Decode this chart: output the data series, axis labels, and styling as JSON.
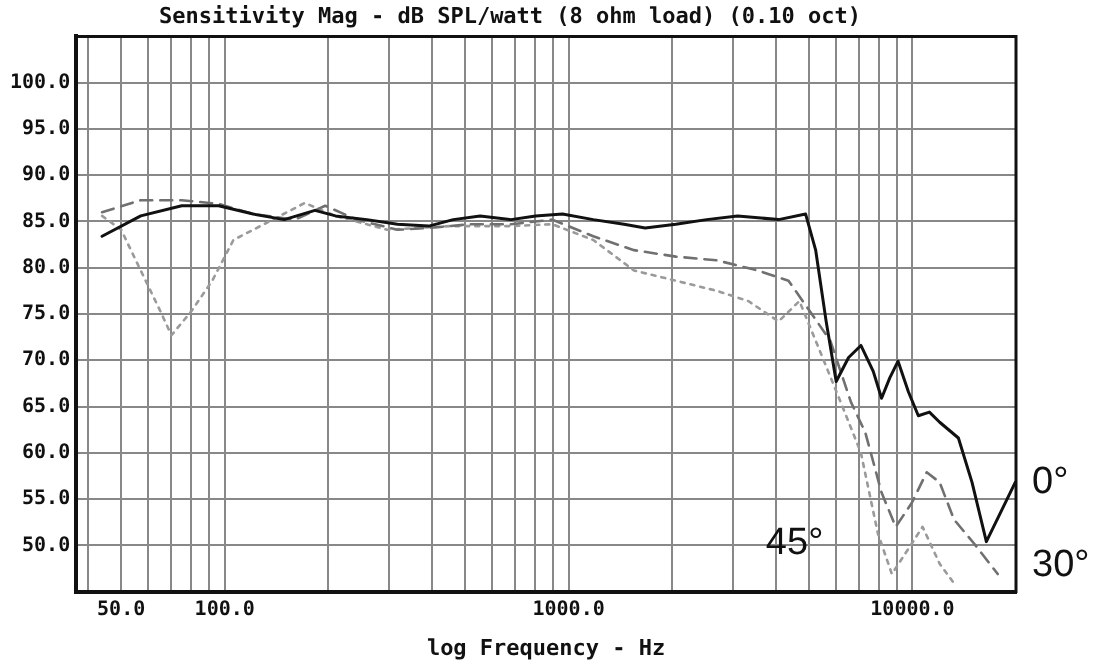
{
  "chart_data": {
    "type": "line",
    "title": "Sensitivity Mag - dB SPL/watt (8 ohm load) (0.10 oct)",
    "xlabel": "log Frequency - Hz",
    "log": "x",
    "grid": true,
    "legend": false,
    "marker": "none",
    "xlim": [
      37,
      20000
    ],
    "ylim": [
      45,
      105
    ],
    "xticks": [
      {
        "value": 40,
        "label": null
      },
      {
        "value": 50,
        "label": "50.0"
      },
      {
        "value": 60,
        "label": null
      },
      {
        "value": 70,
        "label": null
      },
      {
        "value": 80,
        "label": null
      },
      {
        "value": 90,
        "label": null
      },
      {
        "value": 100,
        "label": "100.0"
      },
      {
        "value": 200,
        "label": null
      },
      {
        "value": 300,
        "label": null
      },
      {
        "value": 400,
        "label": null
      },
      {
        "value": 500,
        "label": null
      },
      {
        "value": 600,
        "label": null
      },
      {
        "value": 700,
        "label": null
      },
      {
        "value": 800,
        "label": null
      },
      {
        "value": 900,
        "label": null
      },
      {
        "value": 1000,
        "label": "1000.0"
      },
      {
        "value": 2000,
        "label": null
      },
      {
        "value": 3000,
        "label": null
      },
      {
        "value": 4000,
        "label": null
      },
      {
        "value": 5000,
        "label": null
      },
      {
        "value": 6000,
        "label": null
      },
      {
        "value": 7000,
        "label": null
      },
      {
        "value": 8000,
        "label": null
      },
      {
        "value": 9000,
        "label": null
      },
      {
        "value": 10000,
        "label": "10000.0"
      },
      {
        "value": 20000,
        "label": null
      }
    ],
    "yticks": [
      {
        "value": 50,
        "label": "50.0"
      },
      {
        "value": 55,
        "label": "55.0"
      },
      {
        "value": 60,
        "label": "60.0"
      },
      {
        "value": 65,
        "label": "65.0"
      },
      {
        "value": 70,
        "label": "70.0"
      },
      {
        "value": 75,
        "label": "75.0"
      },
      {
        "value": 80,
        "label": "80.0"
      },
      {
        "value": 85,
        "label": "85.0"
      },
      {
        "value": 90,
        "label": "90.0"
      },
      {
        "value": 95,
        "label": "95.0"
      },
      {
        "value": 100,
        "label": "100.0"
      }
    ],
    "series": [
      {
        "name": "0°",
        "color": "#111111",
        "line_style": "solid",
        "x": [
          44,
          57,
          75,
          96,
          121,
          149,
          183,
          210,
          259,
          318,
          392,
          462,
          553,
          680,
          802,
          960,
          1180,
          1450,
          1670,
          2050,
          2520,
          3100,
          4080,
          4890,
          5230,
          5610,
          6000,
          6520,
          7080,
          7690,
          8130,
          8590,
          9080,
          9730,
          10400,
          11200,
          12000,
          13600,
          14900,
          16400,
          19900
        ],
        "values": [
          83.4,
          85.6,
          86.7,
          86.7,
          85.8,
          85.2,
          86.2,
          85.6,
          85.2,
          84.7,
          84.5,
          85.2,
          85.6,
          85.2,
          85.6,
          85.8,
          85.2,
          84.7,
          84.3,
          84.7,
          85.2,
          85.6,
          85.2,
          85.8,
          81.9,
          74.2,
          67.7,
          70.3,
          71.6,
          68.8,
          65.9,
          68.1,
          69.9,
          66.6,
          64.0,
          64.4,
          63.3,
          61.6,
          56.8,
          50.4,
          56.8
        ]
      },
      {
        "name": "30°",
        "color": "#707070",
        "line_style": "dashed",
        "x": [
          44,
          57,
          75,
          96,
          121,
          160,
          196,
          242,
          318,
          392,
          517,
          680,
          896,
          1180,
          1550,
          2050,
          2700,
          3550,
          4360,
          5030,
          5770,
          6620,
          7290,
          8130,
          8940,
          9960,
          11000,
          12000,
          13200,
          15100,
          17700
        ],
        "values": [
          86.0,
          87.3,
          87.3,
          86.9,
          85.8,
          85.2,
          86.7,
          85.2,
          84.1,
          84.3,
          84.7,
          84.7,
          85.2,
          83.4,
          81.9,
          81.2,
          80.8,
          79.7,
          78.6,
          75.3,
          72.1,
          65.5,
          62.2,
          55.7,
          52.0,
          54.6,
          57.9,
          56.8,
          52.8,
          50.2,
          46.9
        ]
      },
      {
        "name": "45°",
        "color": "#9a9a9a",
        "line_style": "dotted",
        "x": [
          44,
          50,
          57,
          65,
          70,
          80,
          92,
          106,
          130,
          171,
          210,
          297,
          450,
          680,
          896,
          1180,
          1550,
          2050,
          2700,
          3330,
          4080,
          4690,
          5380,
          6180,
          7080,
          7930,
          8710,
          9960,
          10700,
          12000,
          13200
        ],
        "values": [
          85.6,
          84.1,
          79.7,
          75.3,
          72.7,
          75.3,
          78.6,
          83.0,
          84.7,
          87.0,
          85.6,
          84.1,
          84.5,
          84.5,
          84.7,
          83.0,
          79.7,
          78.6,
          77.5,
          76.4,
          74.2,
          76.4,
          71.0,
          65.5,
          60.0,
          51.3,
          46.9,
          50.2,
          52.0,
          48.0,
          45.9
        ]
      }
    ]
  }
}
